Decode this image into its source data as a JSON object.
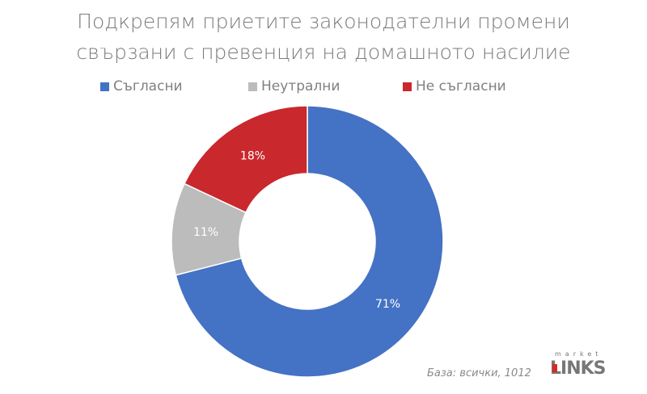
{
  "chart_data": {
    "type": "pie",
    "variant": "donut",
    "title_lines": [
      "Подкрепям приетите законодателни промени",
      "свързани с превенция на домашното насилие"
    ],
    "categories": [
      "Съгласни",
      "Неутрални",
      "Не съгласни"
    ],
    "values": [
      71,
      11,
      18
    ],
    "data_labels": [
      "71%",
      "11%",
      "18%"
    ],
    "colors": [
      "#4472c4",
      "#bcbcbc",
      "#c9282d"
    ],
    "legend_position": "top"
  },
  "footer": {
    "base_note": "База: всички, 1012",
    "logo_text": "LINKS",
    "logo_top": "market"
  }
}
